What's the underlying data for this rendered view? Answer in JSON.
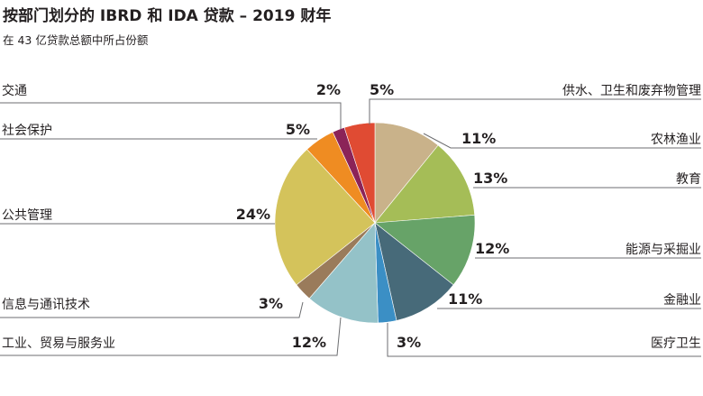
{
  "title": "按部门划分的 IBRD 和 IDA 贷款 – 2019 财年",
  "subtitle": "在 43 亿贷款总额中所占份额",
  "chart_data": {
    "type": "pie",
    "slices": [
      {
        "label": "农林渔业",
        "value": 11,
        "display": "11%",
        "color": "#c9b28a"
      },
      {
        "label": "教育",
        "value": 13,
        "display": "13%",
        "color": "#a5bd57"
      },
      {
        "label": "能源与采掘业",
        "value": 12,
        "display": "12%",
        "color": "#67a368"
      },
      {
        "label": "金融业",
        "value": 11,
        "display": "11%",
        "color": "#476a79"
      },
      {
        "label": "医疗卫生",
        "value": 3,
        "display": "3%",
        "color": "#3b8fc5"
      },
      {
        "label": "工业、贸易与服务业",
        "value": 12,
        "display": "12%",
        "color": "#94c2c8"
      },
      {
        "label": "信息与通讯技术",
        "value": 3,
        "display": "3%",
        "color": "#9a7b5b"
      },
      {
        "label": "公共管理",
        "value": 24,
        "display": "24%",
        "color": "#d4c35b"
      },
      {
        "label": "社会保护",
        "value": 5,
        "display": "5%",
        "color": "#ef8c22"
      },
      {
        "label": "交通",
        "value": 2,
        "display": "2%",
        "color": "#8b2358"
      },
      {
        "label": "供水、卫生和废弃物管理",
        "value": 5,
        "display": "5%",
        "color": "#e04b33"
      }
    ]
  }
}
